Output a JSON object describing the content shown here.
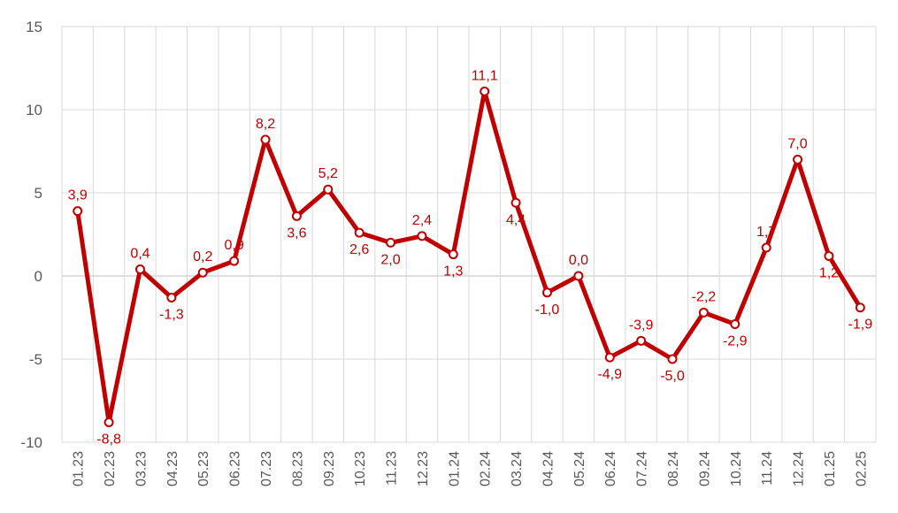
{
  "chart_data": {
    "type": "line",
    "title": "",
    "xlabel": "",
    "ylabel": "",
    "ylim": [
      -10,
      15
    ],
    "yticks": [
      "-10",
      "-5",
      "0",
      "5",
      "10",
      "15"
    ],
    "grid": true,
    "color": "#C00000",
    "categories": [
      "01.23",
      "02.23",
      "03.23",
      "04.23",
      "05.23",
      "06.23",
      "07.23",
      "08.23",
      "09.23",
      "10.23",
      "11.23",
      "12.23",
      "01.24",
      "02.24",
      "03.24",
      "04.24",
      "05.24",
      "06.24",
      "07.24",
      "08.24",
      "09.24",
      "10.24",
      "11.24",
      "12.24",
      "01.25",
      "02.25"
    ],
    "series": [
      {
        "values": [
          3.9,
          -8.8,
          0.4,
          -1.3,
          0.2,
          0.9,
          8.2,
          3.6,
          5.2,
          2.6,
          2.0,
          2.4,
          1.3,
          11.1,
          4.4,
          -1.0,
          0.0,
          -4.9,
          -3.9,
          -5.0,
          -2.2,
          -2.9,
          1.7,
          7.0,
          1.2,
          -1.9
        ],
        "labels": [
          "3,9",
          "-8,8",
          "0,4",
          "-1,3",
          "0,2",
          "0,9",
          "8,2",
          "3,6",
          "5,2",
          "2,6",
          "2,0",
          "2,4",
          "1,3",
          "11,1",
          "4,4",
          "-1,0",
          "0,0",
          "-4,9",
          "-3,9",
          "-5,0",
          "-2,2",
          "-2,9",
          "1,7",
          "7,0",
          "1,2",
          "-1,9"
        ]
      }
    ]
  }
}
